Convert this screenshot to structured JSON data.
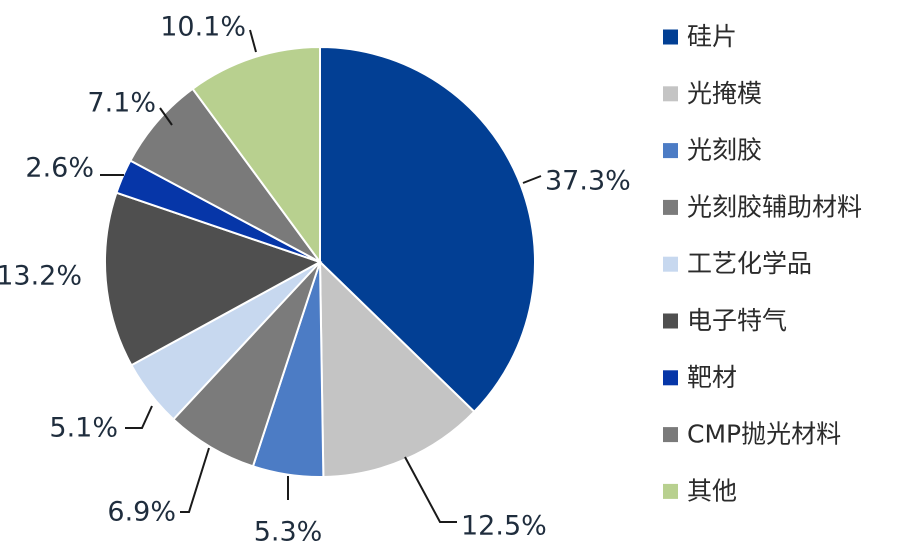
{
  "chart_data": {
    "type": "pie",
    "start_angle_deg": 0,
    "direction": "clockwise",
    "legend_position": "right",
    "slices": [
      {
        "name": "硅片",
        "value": 37.3,
        "label": "37.3%",
        "color": "#023f94"
      },
      {
        "name": "光掩模",
        "value": 12.5,
        "label": "12.5%",
        "color": "#c4c4c4"
      },
      {
        "name": "光刻胶",
        "value": 5.3,
        "label": "5.3%",
        "color": "#4c7cc5"
      },
      {
        "name": "光刻胶辅助材料",
        "value": 6.9,
        "label": "6.9%",
        "color": "#7b7b7b"
      },
      {
        "name": "工艺化学品",
        "value": 5.1,
        "label": "5.1%",
        "color": "#c7d8ef"
      },
      {
        "name": "电子特气",
        "value": 13.2,
        "label": "13.2%",
        "color": "#4f4f4f"
      },
      {
        "name": "靶材",
        "value": 2.6,
        "label": "2.6%",
        "color": "#0636a8"
      },
      {
        "name": "CMP抛光材料",
        "value": 7.1,
        "label": "7.1%",
        "color": "#7a7a7a"
      },
      {
        "name": "其他",
        "value": 10.1,
        "label": "10.1%",
        "color": "#b8d08f"
      }
    ]
  }
}
